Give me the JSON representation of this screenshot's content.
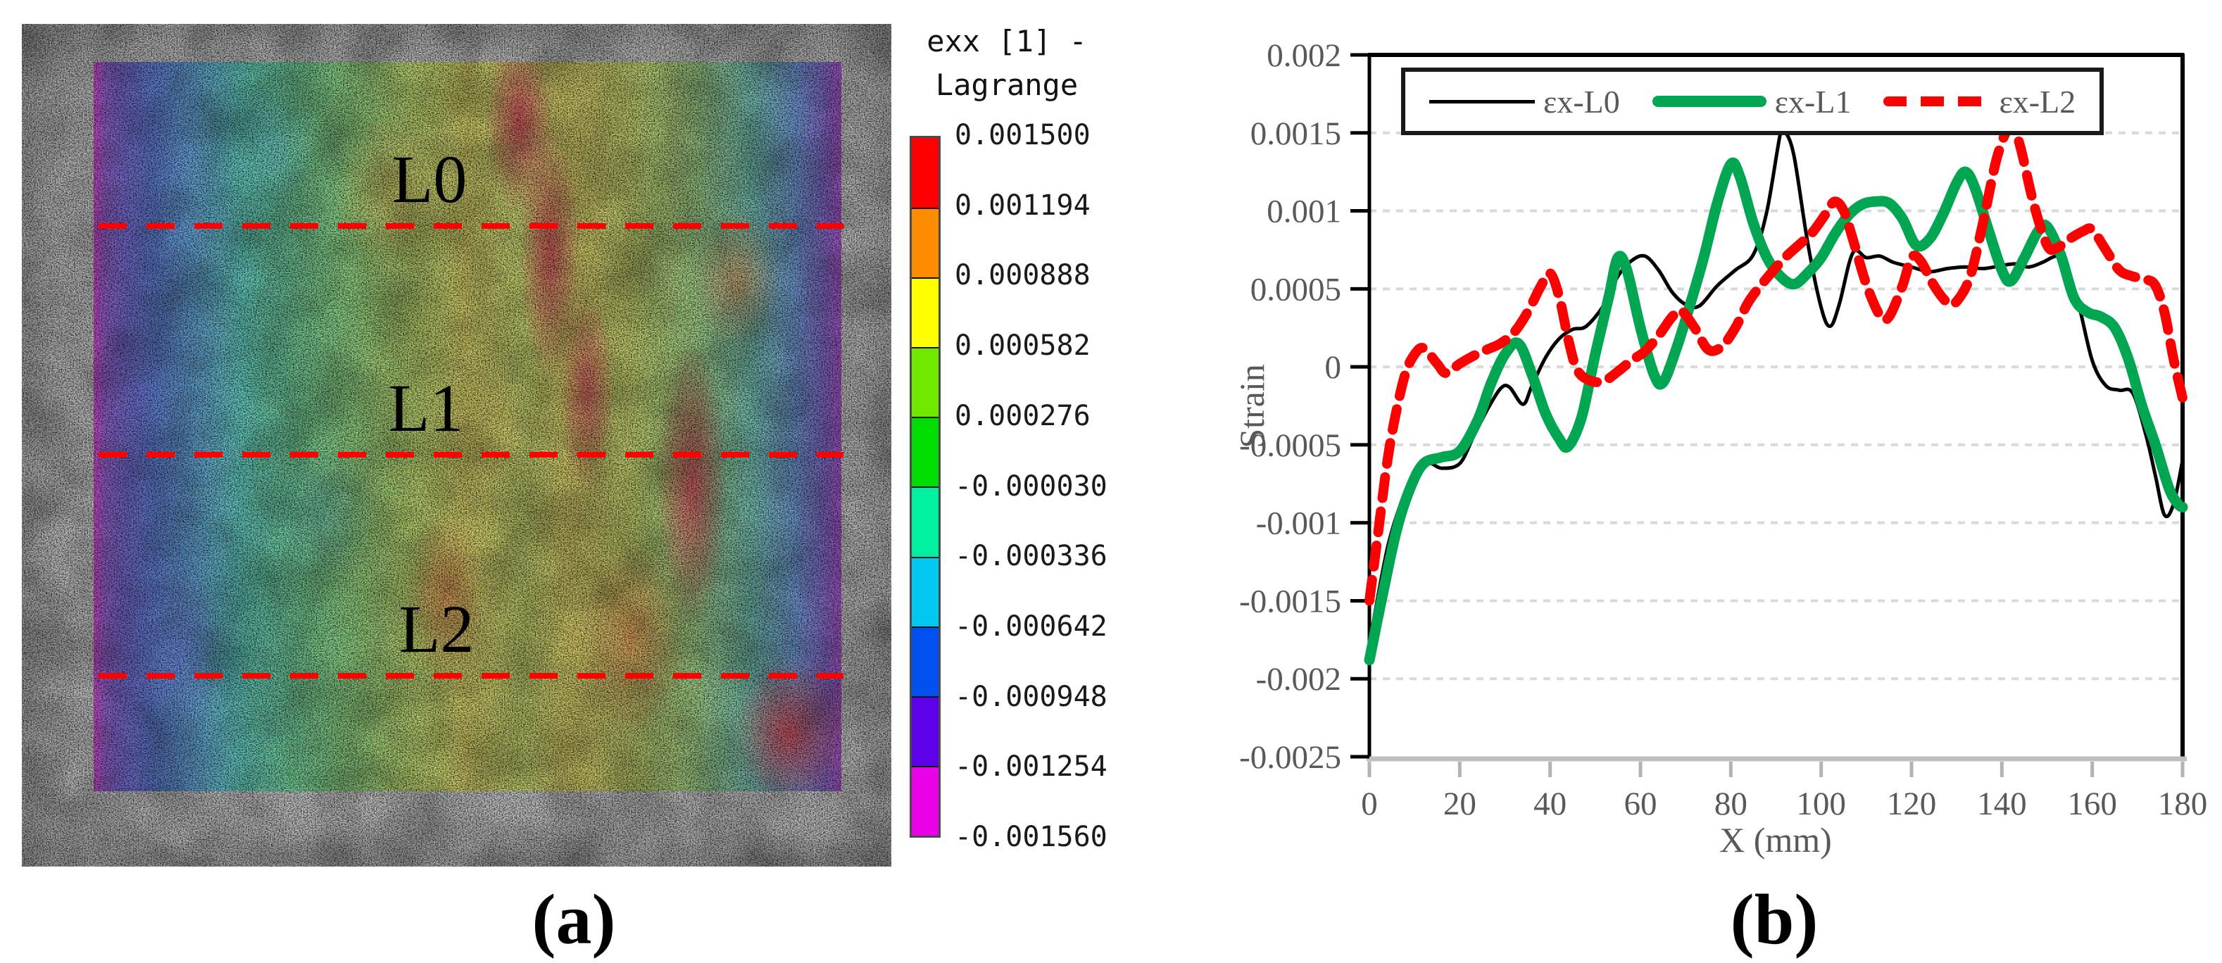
{
  "panel_a": {
    "caption": "(a)",
    "lines": [
      {
        "label": "L0"
      },
      {
        "label": "L1"
      },
      {
        "label": "L2"
      }
    ],
    "line_color": "#ff0000",
    "colorbar": {
      "title_line1": "exx [1] -",
      "title_line2": "Lagrange",
      "tick_labels": [
        "0.001500",
        "0.001194",
        "0.000888",
        "0.000582",
        "0.000276",
        "-0.000030",
        "-0.000336",
        "-0.000642",
        "-0.000948",
        "-0.001254",
        "-0.001560"
      ],
      "segment_colors": [
        "#ff0000",
        "#ff8c00",
        "#ffff00",
        "#70e800",
        "#00dc00",
        "#00f0a0",
        "#00c8f0",
        "#0050f0",
        "#5c00e8",
        "#e800e8"
      ]
    }
  },
  "panel_b": {
    "caption": "(b)"
  },
  "chart_data": {
    "type": "line",
    "title": "",
    "xlabel": "X (mm)",
    "ylabel": "Strain",
    "xlim": [
      0,
      180
    ],
    "ylim": [
      -0.0025,
      0.002
    ],
    "x_ticks": [
      0,
      20,
      40,
      60,
      80,
      100,
      120,
      140,
      160,
      180
    ],
    "x_tick_labels": [
      "0",
      "20",
      "40",
      "60",
      "80",
      "100",
      "120",
      "140",
      "160",
      "180"
    ],
    "y_ticks": [
      0.002,
      0.0015,
      0.001,
      0.0005,
      0,
      -0.0005,
      -0.001,
      -0.0015,
      -0.002,
      -0.0025
    ],
    "y_tick_labels": [
      "0.002",
      "0.0015",
      "0.001",
      "0.0005",
      "0",
      "-0.0005",
      "-0.001",
      "-0.0015",
      "-0.002",
      "-0.0025"
    ],
    "grid": "horizontal dashed, light gray, every 0.0005 from 0.0015 to -0.002",
    "legend_position": "top-left-inside",
    "colors": {
      "grid": "#d9d9d9",
      "axis_text": "#595959",
      "x_axis_line": "#bfbfbf",
      "frame": "#000000"
    },
    "series": [
      {
        "name": "εx-L0",
        "color": "#000000",
        "width": 5,
        "dash": null,
        "style": "thin-solid",
        "points": [
          [
            0,
            -0.00178
          ],
          [
            3,
            -0.0013
          ],
          [
            5,
            -0.00105
          ],
          [
            8,
            -0.0008
          ],
          [
            10,
            -0.00072
          ],
          [
            13,
            -0.00062
          ],
          [
            16,
            -0.00065
          ],
          [
            20,
            -0.00062
          ],
          [
            23,
            -0.00045
          ],
          [
            26,
            -0.00028
          ],
          [
            29,
            -0.00014
          ],
          [
            31,
            -0.00013
          ],
          [
            34,
            -0.00024
          ],
          [
            36,
            -0.00012
          ],
          [
            39,
            6e-05
          ],
          [
            42,
            0.00018
          ],
          [
            45,
            0.00024
          ],
          [
            48,
            0.00026
          ],
          [
            52,
            0.0004
          ],
          [
            55,
            0.00058
          ],
          [
            58,
            0.00068
          ],
          [
            61,
            0.00071
          ],
          [
            64,
            0.00062
          ],
          [
            67,
            0.00048
          ],
          [
            70,
            0.0004
          ],
          [
            73,
            0.00039
          ],
          [
            77,
            0.00052
          ],
          [
            81,
            0.00062
          ],
          [
            85,
            0.00072
          ],
          [
            88,
            0.001
          ],
          [
            91,
            0.0015
          ],
          [
            92,
            0.00151
          ],
          [
            94,
            0.00135
          ],
          [
            97,
            0.0008
          ],
          [
            100,
            0.00038
          ],
          [
            102,
            0.00026
          ],
          [
            104,
            0.0004
          ],
          [
            107,
            0.00073
          ],
          [
            110,
            0.0007
          ],
          [
            113,
            0.00071
          ],
          [
            116,
            0.00067
          ],
          [
            120,
            0.00064
          ],
          [
            124,
            0.00061
          ],
          [
            128,
            0.00063
          ],
          [
            132,
            0.00064
          ],
          [
            136,
            0.00063
          ],
          [
            140,
            0.00065
          ],
          [
            143,
            0.00066
          ],
          [
            146,
            0.00064
          ],
          [
            149,
            0.00067
          ],
          [
            152,
            0.00071
          ],
          [
            154,
            0.00068
          ],
          [
            157,
            0.0004
          ],
          [
            160,
            4e-05
          ],
          [
            163,
            -0.00012
          ],
          [
            166,
            -0.00015
          ],
          [
            169,
            -0.00017
          ],
          [
            172,
            -0.00045
          ],
          [
            174,
            -0.0007
          ],
          [
            176,
            -0.00095
          ],
          [
            178,
            -0.00088
          ],
          [
            180,
            -0.0006
          ]
        ]
      },
      {
        "name": "εx-L1",
        "color": "#00A651",
        "width": 15,
        "dash": null,
        "style": "thick-solid",
        "points": [
          [
            0,
            -0.00188
          ],
          [
            3,
            -0.00145
          ],
          [
            6,
            -0.00105
          ],
          [
            9,
            -0.00078
          ],
          [
            12,
            -0.00062
          ],
          [
            16,
            -0.00058
          ],
          [
            20,
            -0.00054
          ],
          [
            24,
            -0.00034
          ],
          [
            27,
            -0.0001
          ],
          [
            30,
            8e-05
          ],
          [
            33,
            0.00015
          ],
          [
            36,
            -5e-05
          ],
          [
            39,
            -0.0003
          ],
          [
            42,
            -0.00046
          ],
          [
            44,
            -0.00051
          ],
          [
            47,
            -0.00032
          ],
          [
            50,
            8e-05
          ],
          [
            53,
            0.00045
          ],
          [
            55,
            0.0007
          ],
          [
            57,
            0.00062
          ],
          [
            60,
            0.00025
          ],
          [
            63,
            -5e-05
          ],
          [
            65,
            -0.0001
          ],
          [
            68,
            0.00012
          ],
          [
            71,
            0.0004
          ],
          [
            74,
            0.0007
          ],
          [
            77,
            0.00105
          ],
          [
            80,
            0.0013
          ],
          [
            82,
            0.00122
          ],
          [
            85,
            0.00092
          ],
          [
            88,
            0.0007
          ],
          [
            91,
            0.00058
          ],
          [
            94,
            0.00053
          ],
          [
            97,
            0.0006
          ],
          [
            100,
            0.0007
          ],
          [
            103,
            0.00085
          ],
          [
            106,
            0.00097
          ],
          [
            109,
            0.00104
          ],
          [
            112,
            0.00106
          ],
          [
            115,
            0.00105
          ],
          [
            118,
            0.00095
          ],
          [
            121,
            0.00078
          ],
          [
            124,
            0.00082
          ],
          [
            127,
            0.00098
          ],
          [
            130,
            0.00118
          ],
          [
            132,
            0.00125
          ],
          [
            134,
            0.00115
          ],
          [
            137,
            0.00088
          ],
          [
            140,
            0.00062
          ],
          [
            142,
            0.00055
          ],
          [
            145,
            0.0007
          ],
          [
            148,
            0.00087
          ],
          [
            150,
            0.0009
          ],
          [
            153,
            0.00072
          ],
          [
            156,
            0.00044
          ],
          [
            159,
            0.00035
          ],
          [
            162,
            0.00032
          ],
          [
            165,
            0.00025
          ],
          [
            168,
            5e-05
          ],
          [
            171,
            -0.00025
          ],
          [
            174,
            -0.0005
          ],
          [
            177,
            -0.00078
          ],
          [
            179,
            -0.00088
          ],
          [
            180,
            -0.0009
          ]
        ]
      },
      {
        "name": "εx-L2",
        "color": "#FF0000",
        "width": 14,
        "dash": [
          30,
          19
        ],
        "style": "thick-dashed",
        "points": [
          [
            0,
            -0.0015
          ],
          [
            2,
            -0.00105
          ],
          [
            4,
            -0.0006
          ],
          [
            6,
            -0.00028
          ],
          [
            8,
            -4e-05
          ],
          [
            10,
            8e-05
          ],
          [
            12,
            0.00012
          ],
          [
            15,
            2e-05
          ],
          [
            17,
            -4e-05
          ],
          [
            20,
            2e-05
          ],
          [
            23,
            7e-05
          ],
          [
            26,
            0.00011
          ],
          [
            29,
            0.00015
          ],
          [
            32,
            0.00022
          ],
          [
            35,
            0.00035
          ],
          [
            38,
            0.00052
          ],
          [
            40,
            0.0006
          ],
          [
            42,
            0.00045
          ],
          [
            44,
            0.00018
          ],
          [
            46,
            -2e-05
          ],
          [
            49,
            -9e-05
          ],
          [
            52,
            -9e-05
          ],
          [
            55,
            -3e-05
          ],
          [
            58,
            4e-05
          ],
          [
            61,
            0.0001
          ],
          [
            64,
            0.0002
          ],
          [
            67,
            0.00032
          ],
          [
            69,
            0.00036
          ],
          [
            72,
            0.00025
          ],
          [
            75,
            0.00011
          ],
          [
            78,
            0.00013
          ],
          [
            81,
            0.00025
          ],
          [
            84,
            0.00042
          ],
          [
            88,
            0.00057
          ],
          [
            92,
            0.0007
          ],
          [
            95,
            0.00078
          ],
          [
            98,
            0.00086
          ],
          [
            101,
            0.00098
          ],
          [
            103,
            0.00106
          ],
          [
            105,
            0.001
          ],
          [
            107,
            0.00082
          ],
          [
            110,
            0.00053
          ],
          [
            113,
            0.00033
          ],
          [
            115,
            0.00032
          ],
          [
            118,
            0.00052
          ],
          [
            120,
            0.0007
          ],
          [
            122,
            0.00068
          ],
          [
            125,
            0.00052
          ],
          [
            128,
            0.00041
          ],
          [
            130,
            0.00042
          ],
          [
            133,
            0.00058
          ],
          [
            136,
            0.00095
          ],
          [
            139,
            0.00135
          ],
          [
            142,
            0.00155
          ],
          [
            144,
            0.00142
          ],
          [
            147,
            0.00105
          ],
          [
            150,
            0.00078
          ],
          [
            152,
            0.00076
          ],
          [
            155,
            0.00082
          ],
          [
            158,
            0.00087
          ],
          [
            160,
            0.00088
          ],
          [
            163,
            0.00075
          ],
          [
            166,
            0.00062
          ],
          [
            169,
            0.00058
          ],
          [
            172,
            0.00056
          ],
          [
            174,
            0.00052
          ],
          [
            176,
            0.00035
          ],
          [
            178,
            5e-05
          ],
          [
            180,
            -0.0002
          ]
        ]
      }
    ]
  }
}
